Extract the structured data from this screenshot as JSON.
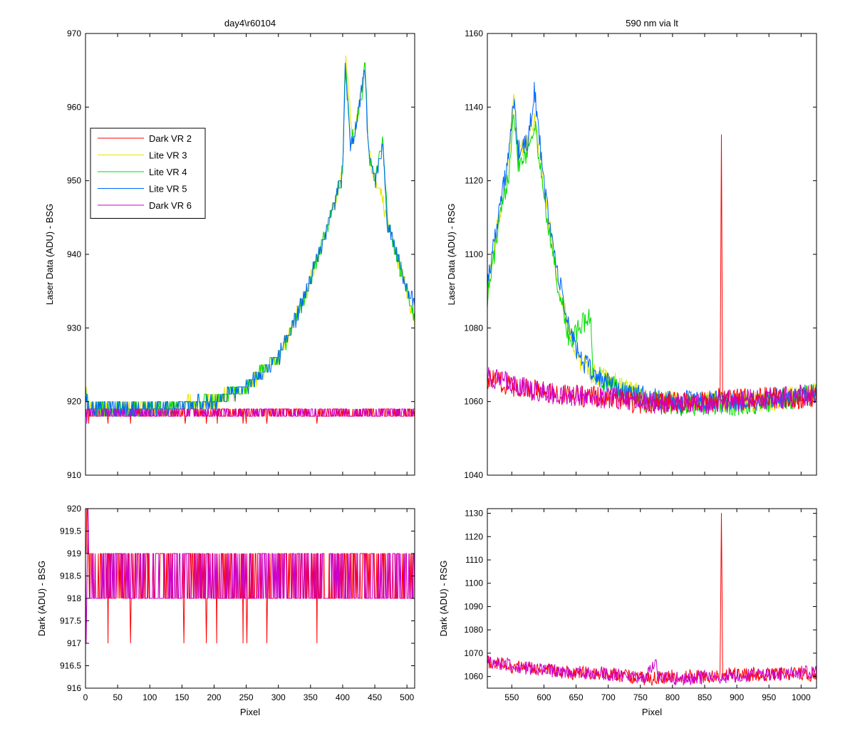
{
  "chart_data": [
    {
      "id": "top-left",
      "type": "line",
      "title": "day4\\r60104",
      "xlabel": "",
      "ylabel": "Laser Data (ADU) - BSG",
      "xlim": [
        0,
        512
      ],
      "ylim": [
        910,
        970
      ],
      "xticks": [],
      "yticks": [
        910,
        920,
        930,
        940,
        950,
        960,
        970
      ],
      "legend": {
        "position": "left",
        "entries": [
          "Dark VR 2",
          "Lite VR 3",
          "Lite VR 4",
          "Lite VR 5",
          "Dark VR 6"
        ]
      },
      "series": [
        {
          "name": "Dark VR 2",
          "color": "#ff0000",
          "shape": "flat",
          "base": 918,
          "noise": 1,
          "keypoints": [
            [
              0,
              918
            ],
            [
              512,
              918
            ]
          ],
          "dips": [
            [
              5,
              917
            ],
            [
              35,
              917
            ],
            [
              70,
              917
            ],
            [
              155,
              917
            ],
            [
              188,
              917
            ],
            [
              205,
              917
            ],
            [
              245,
              917
            ],
            [
              250,
              917
            ],
            [
              282,
              917
            ],
            [
              360,
              917
            ]
          ]
        },
        {
          "name": "Lite VR 3",
          "color": "#e5e500",
          "shape": "curve",
          "noise": 1,
          "keypoints": [
            [
              0,
              922
            ],
            [
              5,
              919
            ],
            [
              100,
              919
            ],
            [
              150,
              919.5
            ],
            [
              200,
              920
            ],
            [
              250,
              922
            ],
            [
              300,
              926
            ],
            [
              340,
              934
            ],
            [
              370,
              942
            ],
            [
              390,
              948
            ],
            [
              400,
              952
            ],
            [
              405,
              967
            ],
            [
              415,
              955
            ],
            [
              420,
              957
            ],
            [
              430,
              963
            ],
            [
              435,
              966
            ],
            [
              440,
              954
            ],
            [
              450,
              950
            ],
            [
              460,
              948
            ],
            [
              470,
              944
            ],
            [
              490,
              938
            ],
            [
              500,
              935
            ],
            [
              512,
              931
            ]
          ]
        },
        {
          "name": "Lite VR 4",
          "color": "#00dd00",
          "shape": "curve",
          "noise": 1,
          "keypoints": [
            [
              0,
              922
            ],
            [
              5,
              919
            ],
            [
              100,
              919
            ],
            [
              150,
              919.5
            ],
            [
              200,
              920
            ],
            [
              250,
              922
            ],
            [
              300,
              926
            ],
            [
              340,
              934
            ],
            [
              370,
              942
            ],
            [
              390,
              948
            ],
            [
              400,
              951
            ],
            [
              404,
              966
            ],
            [
              412,
              955
            ],
            [
              420,
              957
            ],
            [
              430,
              962
            ],
            [
              435,
              966
            ],
            [
              440,
              954
            ],
            [
              450,
              950
            ],
            [
              462,
              956
            ],
            [
              470,
              944
            ],
            [
              490,
              938
            ],
            [
              500,
              935
            ],
            [
              512,
              931
            ]
          ]
        },
        {
          "name": "Lite VR 5",
          "color": "#0066ff",
          "shape": "curve",
          "noise": 1,
          "keypoints": [
            [
              0,
              921
            ],
            [
              5,
              919
            ],
            [
              100,
              919
            ],
            [
              150,
              919.5
            ],
            [
              200,
              920
            ],
            [
              250,
              922
            ],
            [
              300,
              926
            ],
            [
              340,
              934
            ],
            [
              370,
              942
            ],
            [
              390,
              948
            ],
            [
              400,
              951
            ],
            [
              404,
              966
            ],
            [
              412,
              955
            ],
            [
              420,
              957
            ],
            [
              430,
              963
            ],
            [
              435,
              965
            ],
            [
              440,
              954
            ],
            [
              450,
              950
            ],
            [
              462,
              955
            ],
            [
              470,
              944
            ],
            [
              490,
              938
            ],
            [
              500,
              935
            ],
            [
              512,
              934
            ]
          ]
        },
        {
          "name": "Dark VR 6",
          "color": "#cc00cc",
          "shape": "flat",
          "base": 918,
          "noise": 1,
          "keypoints": [
            [
              0,
              918
            ],
            [
              512,
              918
            ]
          ],
          "dips": [
            [
              2,
              917
            ]
          ]
        }
      ]
    },
    {
      "id": "top-right",
      "type": "line",
      "title": "590 nm via lt",
      "xlabel": "",
      "ylabel": "Laser Data (ADU) - RSG",
      "xlim": [
        512,
        1024
      ],
      "ylim": [
        1040,
        1160
      ],
      "xticks": [],
      "yticks": [
        1040,
        1060,
        1080,
        1100,
        1120,
        1140,
        1160
      ],
      "series": [
        {
          "name": "Lite VR 3",
          "color": "#e5e500",
          "shape": "curve",
          "noise": 3,
          "keypoints": [
            [
              512,
              1090
            ],
            [
              530,
              1110
            ],
            [
              545,
              1125
            ],
            [
              553,
              1145
            ],
            [
              560,
              1128
            ],
            [
              575,
              1130
            ],
            [
              585,
              1138
            ],
            [
              600,
              1118
            ],
            [
              620,
              1095
            ],
            [
              640,
              1078
            ],
            [
              660,
              1070
            ],
            [
              680,
              1067
            ],
            [
              700,
              1066
            ],
            [
              720,
              1064
            ],
            [
              760,
              1061
            ],
            [
              800,
              1060
            ],
            [
              880,
              1060
            ],
            [
              920,
              1060
            ],
            [
              960,
              1060
            ],
            [
              1024,
              1063
            ]
          ]
        },
        {
          "name": "Lite VR 4",
          "color": "#00dd00",
          "shape": "curve",
          "noise": 3,
          "keypoints": [
            [
              512,
              1088
            ],
            [
              530,
              1108
            ],
            [
              545,
              1122
            ],
            [
              553,
              1140
            ],
            [
              560,
              1125
            ],
            [
              575,
              1128
            ],
            [
              585,
              1136
            ],
            [
              600,
              1116
            ],
            [
              620,
              1093
            ],
            [
              640,
              1076
            ],
            [
              672,
              1084
            ],
            [
              676,
              1068
            ],
            [
              700,
              1065
            ],
            [
              720,
              1063
            ],
            [
              760,
              1060
            ],
            [
              800,
              1059
            ],
            [
              880,
              1059
            ],
            [
              920,
              1059
            ],
            [
              960,
              1060
            ],
            [
              1024,
              1062
            ]
          ]
        },
        {
          "name": "Lite VR 5",
          "color": "#0066ff",
          "shape": "curve",
          "noise": 3,
          "keypoints": [
            [
              512,
              1092
            ],
            [
              530,
              1112
            ],
            [
              545,
              1126
            ],
            [
              553,
              1142
            ],
            [
              560,
              1128
            ],
            [
              575,
              1130
            ],
            [
              585,
              1145
            ],
            [
              600,
              1119
            ],
            [
              620,
              1096
            ],
            [
              640,
              1079
            ],
            [
              660,
              1071
            ],
            [
              680,
              1067
            ],
            [
              700,
              1065
            ],
            [
              720,
              1063
            ],
            [
              760,
              1061
            ],
            [
              800,
              1060
            ],
            [
              880,
              1060
            ],
            [
              920,
              1060
            ],
            [
              960,
              1061
            ],
            [
              1024,
              1062
            ]
          ]
        },
        {
          "name": "Dark VR 2",
          "color": "#ff0000",
          "shape": "curve",
          "noise": 3,
          "keypoints": [
            [
              512,
              1066
            ],
            [
              560,
              1064
            ],
            [
              620,
              1062
            ],
            [
              700,
              1061
            ],
            [
              760,
              1059
            ],
            [
              800,
              1060
            ],
            [
              870,
              1060
            ],
            [
              874,
              1062
            ],
            [
              876,
              1131
            ],
            [
              878,
              1062
            ],
            [
              882,
              1061
            ],
            [
              1024,
              1061
            ]
          ]
        },
        {
          "name": "Dark VR 6",
          "color": "#cc00cc",
          "shape": "curve",
          "noise": 3,
          "keypoints": [
            [
              512,
              1067
            ],
            [
              560,
              1064
            ],
            [
              620,
              1062
            ],
            [
              700,
              1061
            ],
            [
              760,
              1060
            ],
            [
              800,
              1059
            ],
            [
              880,
              1060
            ],
            [
              960,
              1061
            ],
            [
              1024,
              1062
            ]
          ]
        }
      ]
    },
    {
      "id": "bottom-left",
      "type": "line",
      "title": "",
      "xlabel": "Pixel",
      "ylabel": "Dark (ADU) - BSG",
      "xlim": [
        0,
        512
      ],
      "ylim": [
        916,
        920
      ],
      "xticks": [
        0,
        50,
        100,
        150,
        200,
        250,
        300,
        350,
        400,
        450,
        500
      ],
      "yticks": [
        916,
        916.5,
        917,
        917.5,
        918,
        918.5,
        919,
        919.5,
        920
      ],
      "series": [
        {
          "name": "Dark VR 2",
          "color": "#ff0000",
          "shape": "flat",
          "base": 918,
          "noise": 1,
          "keypoints": [
            [
              0,
              918
            ],
            [
              512,
              918
            ]
          ],
          "dips": [
            [
              35,
              917
            ],
            [
              70,
              917
            ],
            [
              153,
              917
            ],
            [
              188,
              917
            ],
            [
              204,
              917
            ],
            [
              245,
              917
            ],
            [
              251,
              917
            ],
            [
              282,
              917
            ],
            [
              360,
              917
            ]
          ],
          "spikes": [
            [
              2,
              920
            ],
            [
              3,
              920
            ]
          ]
        },
        {
          "name": "Dark VR 6",
          "color": "#cc00cc",
          "shape": "flat",
          "base": 918,
          "noise": 1,
          "keypoints": [
            [
              0,
              918
            ],
            [
              512,
              918
            ]
          ],
          "dips": [
            [
              1,
              917
            ]
          ],
          "spikes": [
            [
              1,
              920
            ],
            [
              4,
              920
            ]
          ]
        }
      ]
    },
    {
      "id": "bottom-right",
      "type": "line",
      "title": "",
      "xlabel": "Pixel",
      "ylabel": "Dark (ADU) - RSG",
      "xlim": [
        512,
        1024
      ],
      "ylim": [
        1055,
        1132
      ],
      "xticks": [
        550,
        600,
        650,
        700,
        750,
        800,
        850,
        900,
        950,
        1000
      ],
      "yticks": [
        1060,
        1070,
        1080,
        1090,
        1100,
        1110,
        1120,
        1130
      ],
      "series": [
        {
          "name": "Dark VR 2",
          "color": "#ff0000",
          "shape": "curve",
          "noise": 3,
          "keypoints": [
            [
              512,
              1066
            ],
            [
              560,
              1064
            ],
            [
              620,
              1062
            ],
            [
              700,
              1061
            ],
            [
              760,
              1059
            ],
            [
              800,
              1060
            ],
            [
              872,
              1060
            ],
            [
              874,
              1062
            ],
            [
              876,
              1131
            ],
            [
              878,
              1062
            ],
            [
              882,
              1061
            ],
            [
              1024,
              1061
            ]
          ]
        },
        {
          "name": "Dark VR 6",
          "color": "#cc00cc",
          "shape": "curve",
          "noise": 3,
          "keypoints": [
            [
              512,
              1067
            ],
            [
              560,
              1064
            ],
            [
              620,
              1062
            ],
            [
              700,
              1061
            ],
            [
              760,
              1060
            ],
            [
              775,
              1068
            ],
            [
              778,
              1060
            ],
            [
              800,
              1059
            ],
            [
              880,
              1060
            ],
            [
              960,
              1061
            ],
            [
              1024,
              1062
            ]
          ]
        }
      ]
    }
  ]
}
